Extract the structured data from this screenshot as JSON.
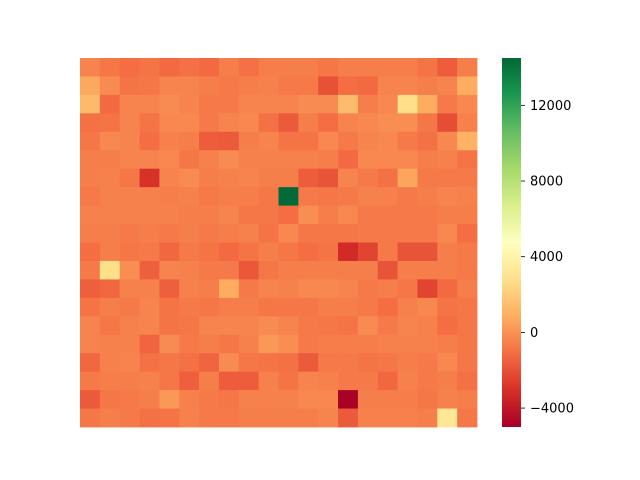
{
  "chart_data": {
    "type": "heatmap",
    "rows": 20,
    "cols": 20,
    "colorbar": {
      "colormap": "RdYlGn",
      "vmin": -5000,
      "vmax": 14500,
      "ticks": [
        -4000,
        0,
        4000,
        8000,
        12000
      ],
      "tick_labels": [
        "−4000",
        "0",
        "4000",
        "8000",
        "12000"
      ]
    },
    "title": "",
    "xlabel": "",
    "ylabel": "",
    "values": [
      [
        -400,
        -800,
        -1100,
        -900,
        -1200,
        -1000,
        -1200,
        -600,
        -1000,
        -600,
        -600,
        -600,
        -800,
        -600,
        -600,
        -600,
        -600,
        -900,
        -1600,
        -600
      ],
      [
        700,
        -200,
        -900,
        -800,
        -400,
        -400,
        -600,
        -700,
        -600,
        -500,
        -700,
        -700,
        -2000,
        -1100,
        -1200,
        -400,
        -400,
        -600,
        -400,
        800
      ],
      [
        1300,
        -1200,
        -400,
        -400,
        -200,
        -400,
        -700,
        -700,
        -400,
        -400,
        -400,
        -200,
        -200,
        1400,
        -600,
        -300,
        2800,
        800,
        -700,
        -300
      ],
      [
        -1000,
        -900,
        -400,
        -900,
        -300,
        -300,
        -700,
        -400,
        -300,
        -1000,
        -1700,
        -600,
        -1100,
        -400,
        -300,
        -100,
        -100,
        -800,
        -2100,
        -500
      ],
      [
        -800,
        -300,
        -400,
        -1100,
        -500,
        -600,
        -1600,
        -1700,
        -600,
        -400,
        -900,
        -900,
        -300,
        -700,
        -400,
        -300,
        -700,
        -1000,
        -300,
        1000
      ],
      [
        -600,
        -600,
        -400,
        -400,
        -300,
        -800,
        -500,
        -200,
        -500,
        -500,
        -500,
        -500,
        -600,
        -1200,
        -300,
        -300,
        -300,
        -600,
        -500,
        -900
      ],
      [
        -600,
        -500,
        -800,
        -3000,
        -400,
        -200,
        -600,
        -500,
        -400,
        -600,
        -600,
        -1600,
        -1900,
        -400,
        -700,
        -1000,
        600,
        -700,
        -700,
        -700
      ],
      [
        -700,
        -500,
        -500,
        -500,
        -600,
        -500,
        -700,
        -600,
        -600,
        -800,
        14400,
        -700,
        -800,
        -700,
        -500,
        -500,
        -700,
        -600,
        -400,
        -500
      ],
      [
        -500,
        -500,
        -500,
        -500,
        -500,
        -600,
        -600,
        -400,
        -800,
        -800,
        -1100,
        -100,
        -600,
        -300,
        -700,
        -700,
        -700,
        -700,
        -600,
        -600
      ],
      [
        -600,
        -600,
        -700,
        -600,
        -700,
        -600,
        -700,
        -600,
        -500,
        -900,
        -300,
        -800,
        -800,
        -800,
        -700,
        -700,
        -700,
        -700,
        -300,
        -1100
      ],
      [
        -1100,
        -600,
        -800,
        -700,
        -1300,
        -700,
        -900,
        -1200,
        -900,
        -600,
        -800,
        -1100,
        -900,
        -3300,
        -2400,
        -700,
        -1900,
        -1900,
        -600,
        -700
      ],
      [
        -700,
        2800,
        -100,
        -1500,
        -400,
        -500,
        -700,
        -700,
        -1800,
        -800,
        -600,
        -600,
        -600,
        -600,
        -600,
        -1900,
        -600,
        -600,
        -600,
        -700
      ],
      [
        -1500,
        -1300,
        -500,
        -500,
        -1500,
        -500,
        -600,
        800,
        -700,
        -400,
        -500,
        -300,
        -300,
        -400,
        -700,
        -600,
        -800,
        -2400,
        -1200,
        -600
      ],
      [
        -900,
        -600,
        -700,
        -400,
        -900,
        -700,
        -800,
        -600,
        -600,
        -800,
        -800,
        -800,
        -600,
        -600,
        -700,
        -1100,
        -500,
        -300,
        -900,
        -800
      ],
      [
        -400,
        -800,
        -500,
        -400,
        -900,
        -800,
        -400,
        -400,
        -400,
        -200,
        -400,
        -700,
        -800,
        -900,
        -200,
        -700,
        -400,
        -500,
        -1100,
        -800
      ],
      [
        -400,
        -500,
        -500,
        -1400,
        -200,
        -700,
        -600,
        -800,
        -500,
        200,
        -100,
        -700,
        -600,
        -600,
        -600,
        -500,
        -500,
        -500,
        -600,
        -800
      ],
      [
        -1300,
        -500,
        -400,
        -1000,
        -800,
        -1000,
        -1400,
        -200,
        -800,
        -900,
        -1000,
        -1700,
        -700,
        -700,
        -900,
        -800,
        -600,
        -700,
        -300,
        -800
      ],
      [
        -700,
        -600,
        -600,
        -500,
        -800,
        -1500,
        -600,
        -1600,
        -1600,
        -500,
        -900,
        -400,
        -500,
        -700,
        -700,
        -1300,
        -500,
        -700,
        -600,
        -1000
      ],
      [
        -1700,
        -800,
        -700,
        -600,
        200,
        -500,
        -700,
        -800,
        -500,
        -500,
        -500,
        -300,
        -300,
        -4900,
        -600,
        -600,
        -600,
        -800,
        -500,
        -600
      ],
      [
        -800,
        -600,
        -700,
        -1000,
        -900,
        -500,
        -700,
        -700,
        -600,
        -600,
        -600,
        -600,
        -400,
        -1700,
        -500,
        -500,
        -500,
        -600,
        3300,
        -800
      ]
    ]
  }
}
